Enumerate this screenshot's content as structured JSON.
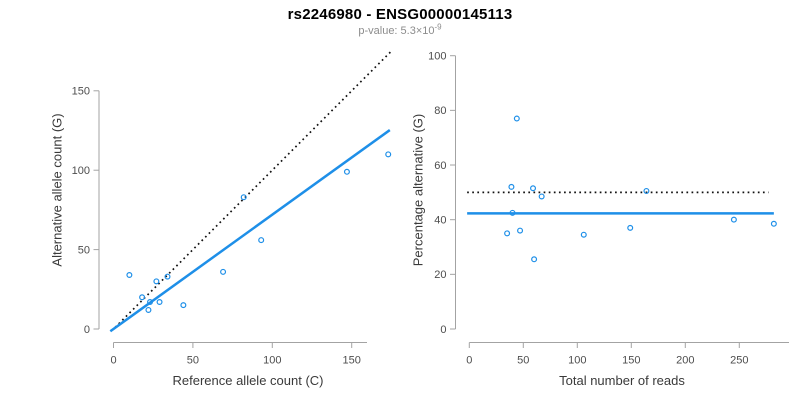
{
  "header": {
    "title": "rs2246980 - ENSG00000145113",
    "subtitle_base": "p-value: 5.3×10",
    "subtitle_exp": "-9"
  },
  "colors": {
    "accent_blue": "#1e8fe8",
    "line_black": "#111111",
    "axis_gray": "#a3a3a3",
    "tick_text": "#4d4d4d",
    "label_text": "#3a3a3a",
    "subtitle_gray": "#8c8c8c"
  },
  "chart_data": [
    {
      "type": "scatter",
      "panel": "left",
      "xlabel": "Reference allele count (C)",
      "ylabel": "Alternative allele count (G)",
      "xlim": [
        0,
        175
      ],
      "ylim": [
        0,
        175
      ],
      "xticks": [
        0,
        50,
        100,
        150
      ],
      "yticks": [
        0,
        50,
        100,
        150
      ],
      "grid": false,
      "points": [
        [
          10,
          34
        ],
        [
          18,
          20
        ],
        [
          22,
          12
        ],
        [
          23,
          17
        ],
        [
          27,
          30
        ],
        [
          29,
          17
        ],
        [
          34,
          33
        ],
        [
          44,
          15
        ],
        [
          69,
          36
        ],
        [
          82,
          83
        ],
        [
          93,
          56
        ],
        [
          147,
          99
        ],
        [
          173,
          110
        ]
      ],
      "lines": [
        {
          "style": "dotted",
          "color": "black",
          "slope": 1,
          "intercept": 0,
          "x_from": 1,
          "x_to": 174.5
        },
        {
          "style": "solid",
          "color": "blue",
          "slope": 0.72,
          "intercept": 0,
          "x_from": -2,
          "x_to": 174
        }
      ]
    },
    {
      "type": "scatter",
      "panel": "right",
      "xlabel": "Total number of reads",
      "ylabel": "Percentage alternative (G)",
      "xlim": [
        0,
        300
      ],
      "ylim": [
        0,
        100
      ],
      "xticks": [
        0,
        50,
        100,
        150,
        200,
        250
      ],
      "yticks": [
        0,
        20,
        40,
        60,
        80,
        100
      ],
      "grid": false,
      "points": [
        [
          44,
          77
        ],
        [
          39,
          52
        ],
        [
          35,
          35
        ],
        [
          40,
          42.5
        ],
        [
          59,
          51.5
        ],
        [
          47,
          36
        ],
        [
          67,
          48.5
        ],
        [
          60,
          25.5
        ],
        [
          106,
          34.5
        ],
        [
          164,
          50.5
        ],
        [
          149,
          37
        ],
        [
          245,
          40
        ],
        [
          282,
          38.5
        ]
      ],
      "lines": [
        {
          "style": "dotted",
          "color": "black",
          "y": 50,
          "x_from": -2,
          "x_to": 277
        },
        {
          "style": "solid",
          "color": "blue",
          "y": 42.3,
          "x_from": -2,
          "x_to": 282
        }
      ]
    }
  ]
}
